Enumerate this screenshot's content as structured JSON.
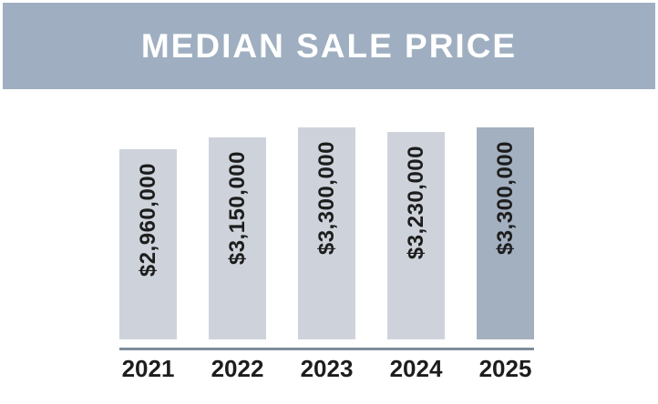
{
  "header": {
    "title": "MEDIAN SALE PRICE"
  },
  "colors": {
    "banner_bg": "#9fafc1",
    "banner_text": "#ffffff",
    "bar_default": "#ced3db",
    "bar_highlight": "#a3b0c0",
    "baseline": "#7f8d9b",
    "label_text": "#1d1d1d"
  },
  "chart_data": {
    "type": "bar",
    "title": "MEDIAN SALE PRICE",
    "categories": [
      "2021",
      "2022",
      "2023",
      "2024",
      "2025"
    ],
    "values": [
      2960000,
      3150000,
      3300000,
      3230000,
      3300000
    ],
    "value_labels": [
      "$2,960,000",
      "$3,150,000",
      "$3,300,000",
      "$3,230,000",
      "$3,300,000"
    ],
    "highlight_index": 4,
    "xlabel": "",
    "ylabel": "",
    "ylim": [
      0,
      3300000
    ],
    "grid": false,
    "legend": false,
    "value_label_placement": "inside-top-rotated-90ccw"
  }
}
